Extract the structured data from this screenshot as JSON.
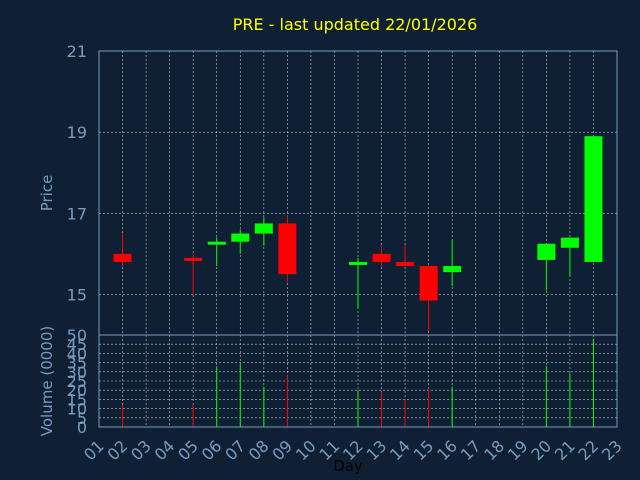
{
  "chart_data": {
    "type": "candlestick",
    "title": "PRE - last updated 22/01/2026",
    "ylabel": "Price",
    "volume_label": "Volume (0000)",
    "xlabel": "Day",
    "ylim": [
      14,
      21
    ],
    "yticks": [
      "15",
      "17",
      "19",
      "21"
    ],
    "volume_ylim": [
      0,
      50
    ],
    "volume_ticks": [
      "0",
      "5",
      "10",
      "15",
      "20",
      "25",
      "30",
      "35",
      "40",
      "45",
      "50"
    ],
    "x_ticks": [
      "01",
      "02",
      "03",
      "04",
      "05",
      "06",
      "07",
      "08",
      "09",
      "10",
      "11",
      "12",
      "13",
      "14",
      "15",
      "16",
      "17",
      "18",
      "19",
      "20",
      "21",
      "22",
      "23"
    ],
    "colors": {
      "up": "#00ff00",
      "down": "#ff0000",
      "title": "#ffff00",
      "axis": "#7a9bc0",
      "background": "#0f2034"
    },
    "candles": [
      {
        "day": "02",
        "open": 16.0,
        "high": 16.5,
        "low": 15.7,
        "close": 15.8,
        "volume": 12
      },
      {
        "day": "05",
        "open": 15.9,
        "high": 16.0,
        "low": 15.0,
        "close": 15.85,
        "volume": 12
      },
      {
        "day": "06",
        "open": 16.25,
        "high": 16.4,
        "low": 15.7,
        "close": 16.3,
        "volume": 33
      },
      {
        "day": "07",
        "open": 16.3,
        "high": 16.6,
        "low": 16.0,
        "close": 16.5,
        "volume": 34
      },
      {
        "day": "08",
        "open": 16.5,
        "high": 16.9,
        "low": 16.2,
        "close": 16.75,
        "volume": 22
      },
      {
        "day": "09",
        "open": 16.75,
        "high": 16.95,
        "low": 15.3,
        "close": 15.5,
        "volume": 28
      },
      {
        "day": "12",
        "open": 15.75,
        "high": 15.9,
        "low": 14.65,
        "close": 15.8,
        "volume": 20
      },
      {
        "day": "13",
        "open": 16.0,
        "high": 16.2,
        "low": 15.7,
        "close": 15.8,
        "volume": 19
      },
      {
        "day": "14",
        "open": 15.8,
        "high": 16.2,
        "low": 15.7,
        "close": 15.7,
        "volume": 15
      },
      {
        "day": "15",
        "open": 15.7,
        "high": 15.7,
        "low": 14.1,
        "close": 14.85,
        "volume": 21
      },
      {
        "day": "16",
        "open": 15.55,
        "high": 16.35,
        "low": 15.2,
        "close": 15.7,
        "volume": 22
      },
      {
        "day": "20",
        "open": 15.85,
        "high": 16.25,
        "low": 15.1,
        "close": 16.25,
        "volume": 33
      },
      {
        "day": "21",
        "open": 16.15,
        "high": 16.4,
        "low": 15.45,
        "close": 16.4,
        "volume": 29
      },
      {
        "day": "22",
        "open": 15.8,
        "high": 18.9,
        "low": 15.8,
        "close": 18.9,
        "volume": 48
      }
    ]
  }
}
